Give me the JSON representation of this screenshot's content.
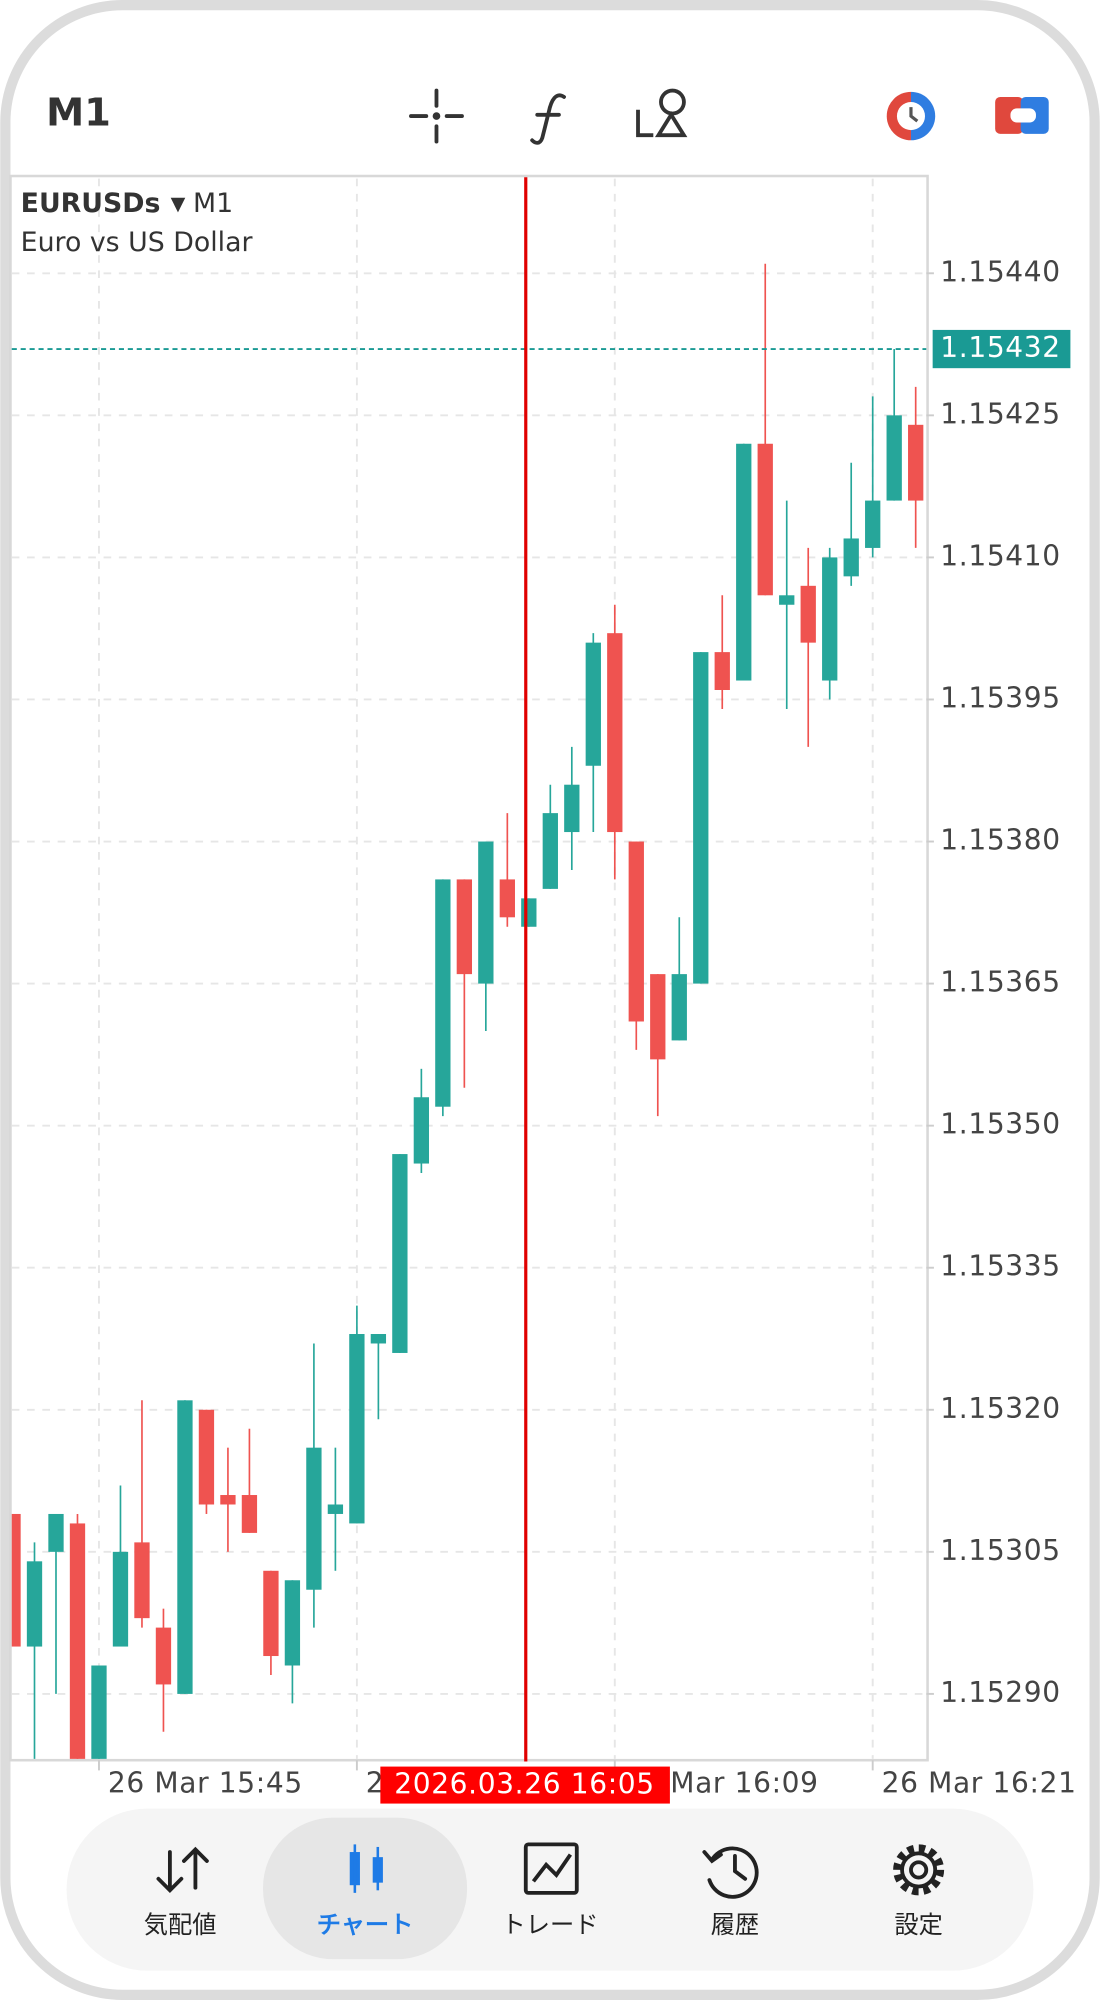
{
  "toolbar": {
    "timeframe": "M1"
  },
  "chart_data": {
    "type": "candlestick",
    "symbol": "EURUSDs",
    "symbol_timeframe": "M1",
    "description": "Euro vs US Dollar",
    "categories": [
      null,
      null,
      null,
      null,
      "26 Mar 15:45",
      null,
      null,
      null,
      null,
      null,
      null,
      null,
      null,
      null,
      null,
      null,
      "26 Mar 15:57",
      null,
      null,
      null,
      null,
      null,
      null,
      null,
      null,
      null,
      null,
      null,
      "26 Mar 16:09",
      null,
      null,
      null,
      null,
      null,
      null,
      null,
      null,
      null,
      null,
      null,
      "26 Mar 16:21",
      null,
      null
    ],
    "open": [
      1.15309,
      1.15295,
      1.15305,
      1.15308,
      1.15283,
      1.15295,
      1.15306,
      1.15297,
      1.1529,
      1.1532,
      1.15311,
      1.15311,
      1.15303,
      1.15293,
      1.15301,
      1.15309,
      1.15308,
      1.15327,
      1.15326,
      1.15346,
      1.15352,
      1.15376,
      1.15365,
      1.15376,
      1.15371,
      1.15375,
      1.15381,
      1.15388,
      1.15402,
      1.1538,
      1.15366,
      1.15359,
      1.15365,
      1.154,
      1.15397,
      1.15422,
      1.15405,
      1.15407,
      1.15397,
      1.15408,
      1.15411,
      1.15416,
      1.15424
    ],
    "high": [
      1.15309,
      1.15306,
      1.15309,
      1.15309,
      1.15293,
      1.15312,
      1.15321,
      1.15299,
      1.15321,
      1.1532,
      1.15316,
      1.15318,
      1.15303,
      1.15302,
      1.15327,
      1.15316,
      1.15331,
      1.15328,
      1.15347,
      1.15356,
      1.15376,
      1.15376,
      1.1538,
      1.15383,
      1.15374,
      1.15386,
      1.1539,
      1.15402,
      1.15405,
      1.1538,
      1.15366,
      1.15372,
      1.154,
      1.15406,
      1.15422,
      1.15441,
      1.15416,
      1.15411,
      1.15411,
      1.1542,
      1.15427,
      1.15432,
      1.15428
    ],
    "low": [
      1.15295,
      1.15283,
      1.1529,
      1.15283,
      1.15283,
      1.15295,
      1.15297,
      1.15286,
      1.1529,
      1.15309,
      1.15305,
      1.15307,
      1.15292,
      1.15289,
      1.15297,
      1.15303,
      1.15308,
      1.15319,
      1.15326,
      1.15345,
      1.15351,
      1.15354,
      1.1536,
      1.15371,
      1.15371,
      1.15375,
      1.15377,
      1.15381,
      1.15376,
      1.15358,
      1.15351,
      1.15359,
      1.15365,
      1.15394,
      1.15397,
      1.15406,
      1.15394,
      1.1539,
      1.15395,
      1.15407,
      1.1541,
      1.15416,
      1.15411
    ],
    "close": [
      1.15295,
      1.15304,
      1.15309,
      1.15283,
      1.15293,
      1.15305,
      1.15298,
      1.15291,
      1.15321,
      1.1531,
      1.1531,
      1.15307,
      1.15294,
      1.15302,
      1.15316,
      1.1531,
      1.15328,
      1.15328,
      1.15347,
      1.15353,
      1.15376,
      1.15366,
      1.1538,
      1.15372,
      1.15374,
      1.15383,
      1.15386,
      1.15401,
      1.15381,
      1.15361,
      1.15357,
      1.15366,
      1.154,
      1.15396,
      1.15422,
      1.15406,
      1.15406,
      1.15401,
      1.1541,
      1.15412,
      1.15416,
      1.15425,
      1.15416
    ],
    "up_color": "#26a69a",
    "down_color": "#ef5350",
    "ylim": [
      1.15283,
      1.1545
    ],
    "yticks": [
      {
        "value": 1.1529,
        "label": "1.15290"
      },
      1.15305,
      {
        "value": 1.1532,
        "label": "1.15320"
      },
      1.15335,
      {
        "value": 1.1535,
        "label": "1.15350"
      },
      1.15365,
      {
        "value": 1.1538,
        "label": "1.15380"
      },
      1.15395,
      {
        "value": 1.1541,
        "label": "1.15410"
      },
      1.15425,
      {
        "value": 1.1544,
        "label": "1.15440"
      }
    ],
    "grid": true,
    "last_price": 1.15432,
    "crosshair_label": "2026.03.26 16:05"
  },
  "nav": {
    "items": [
      "気配値",
      "チャート",
      "トレード",
      "履歴",
      "設定"
    ]
  }
}
